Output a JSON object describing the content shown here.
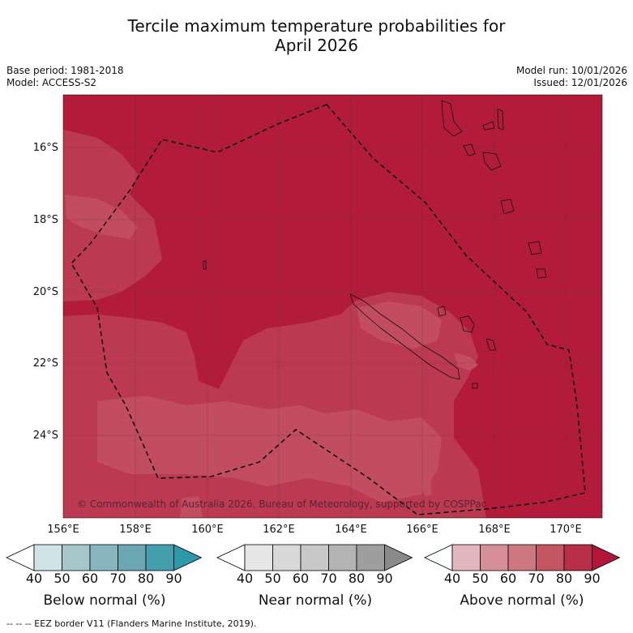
{
  "title": {
    "line1": "Tercile maximum temperature probabilities for",
    "line2": "April 2026"
  },
  "meta": {
    "base_period": "Base period: 1981-2018",
    "model": "Model: ACCESS-S2",
    "model_run": "Model run: 10/01/2026",
    "issued": "Issued: 12/01/2026"
  },
  "axes": {
    "lat_labels": [
      "16°S",
      "18°S",
      "20°S",
      "22°S",
      "24°S"
    ],
    "lon_labels": [
      "156°E",
      "158°E",
      "160°E",
      "162°E",
      "164°E",
      "166°E",
      "168°E",
      "170°E"
    ]
  },
  "copyright": "© Commonwealth of Australia 2026, Bureau of Meteorology, supported by COSPPac",
  "colorbars": [
    {
      "label": "Below normal (%)",
      "ticks": [
        "40",
        "50",
        "60",
        "70",
        "80",
        "90"
      ],
      "colors": [
        "#cfe3e8",
        "#a6c6cb",
        "#88b6bf",
        "#6aa7b2",
        "#459eab",
        "#2f98ab"
      ]
    },
    {
      "label": "Near normal (%)",
      "ticks": [
        "40",
        "50",
        "60",
        "70",
        "80",
        "90"
      ],
      "colors": [
        "#e6e6e6",
        "#d8d8d8",
        "#c8c8c8",
        "#b4b4b4",
        "#9e9e9e",
        "#8a8a8a"
      ]
    },
    {
      "label": "Above normal (%)",
      "ticks": [
        "40",
        "50",
        "60",
        "70",
        "80",
        "90"
      ],
      "colors": [
        "#e1b7bd",
        "#d68f98",
        "#cd7880",
        "#c45563",
        "#b82f48",
        "#b3143a"
      ]
    }
  ],
  "map_colors": {
    "high": "#b21c3a",
    "mid": "#bb3a52",
    "low": "#c04e62"
  },
  "footer": "--  --  -- EEZ border V11 (Flanders Marine Institute, 2019)."
}
